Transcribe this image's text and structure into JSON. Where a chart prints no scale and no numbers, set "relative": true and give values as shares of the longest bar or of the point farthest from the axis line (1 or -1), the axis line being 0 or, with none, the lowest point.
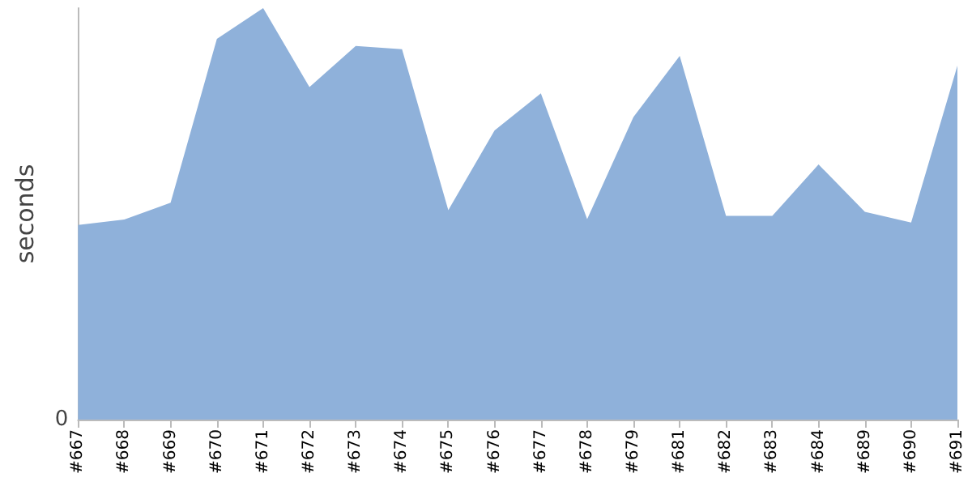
{
  "chart_data": {
    "type": "area",
    "ylabel": "seconds",
    "relative": true,
    "grid": false,
    "annotations": [
      "0"
    ],
    "categories": [
      "#667",
      "#668",
      "#669",
      "#670",
      "#671",
      "#672",
      "#673",
      "#674",
      "#675",
      "#676",
      "#677",
      "#678",
      "#679",
      "#681",
      "#682",
      "#683",
      "#684",
      "#689",
      "#690",
      "#691"
    ],
    "series": [
      {
        "color": "#8fb1da",
        "values": [
          0.473,
          0.486,
          0.527,
          0.925,
          1,
          0.808,
          0.908,
          0.9,
          0.509,
          0.703,
          0.793,
          0.487,
          0.735,
          0.884,
          0.495,
          0.495,
          0.62,
          0.505,
          0.479,
          0.86
        ]
      }
    ]
  }
}
